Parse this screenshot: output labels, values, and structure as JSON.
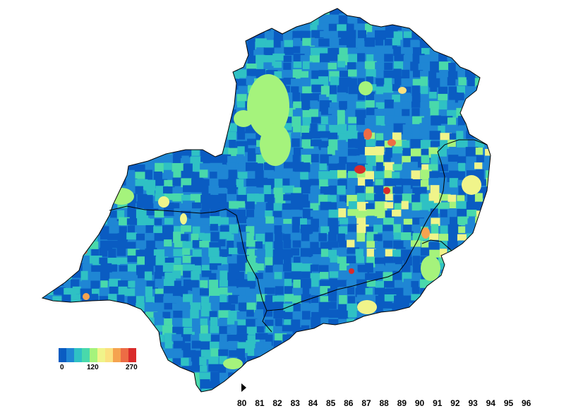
{
  "colors": {
    "dark_blue": "#0a5cc2",
    "mid_blue": "#1f86d4",
    "teal": "#2fc1c4",
    "aqua": "#49d9ab",
    "light_green": "#a5f37c",
    "pale_yellow": "#f0f48a",
    "yellow": "#fbe17f",
    "orange": "#f5a34f",
    "red_orange": "#ed6c45",
    "red": "#d92b2b"
  },
  "legend": {
    "colors": [
      "#0a5cc2",
      "#1f86d4",
      "#2fc1c4",
      "#49d9ab",
      "#a5f37c",
      "#f0f48a",
      "#fbe17f",
      "#f5a34f",
      "#ed6c45",
      "#d92b2b"
    ],
    "label_min": "0",
    "label_mid": "120",
    "label_max": "270"
  },
  "timeline": {
    "play_icon": "play-icon",
    "years": [
      "80",
      "81",
      "82",
      "83",
      "84",
      "85",
      "86",
      "87",
      "88",
      "89",
      "90",
      "91",
      "92",
      "93",
      "94",
      "95",
      "96"
    ]
  }
}
